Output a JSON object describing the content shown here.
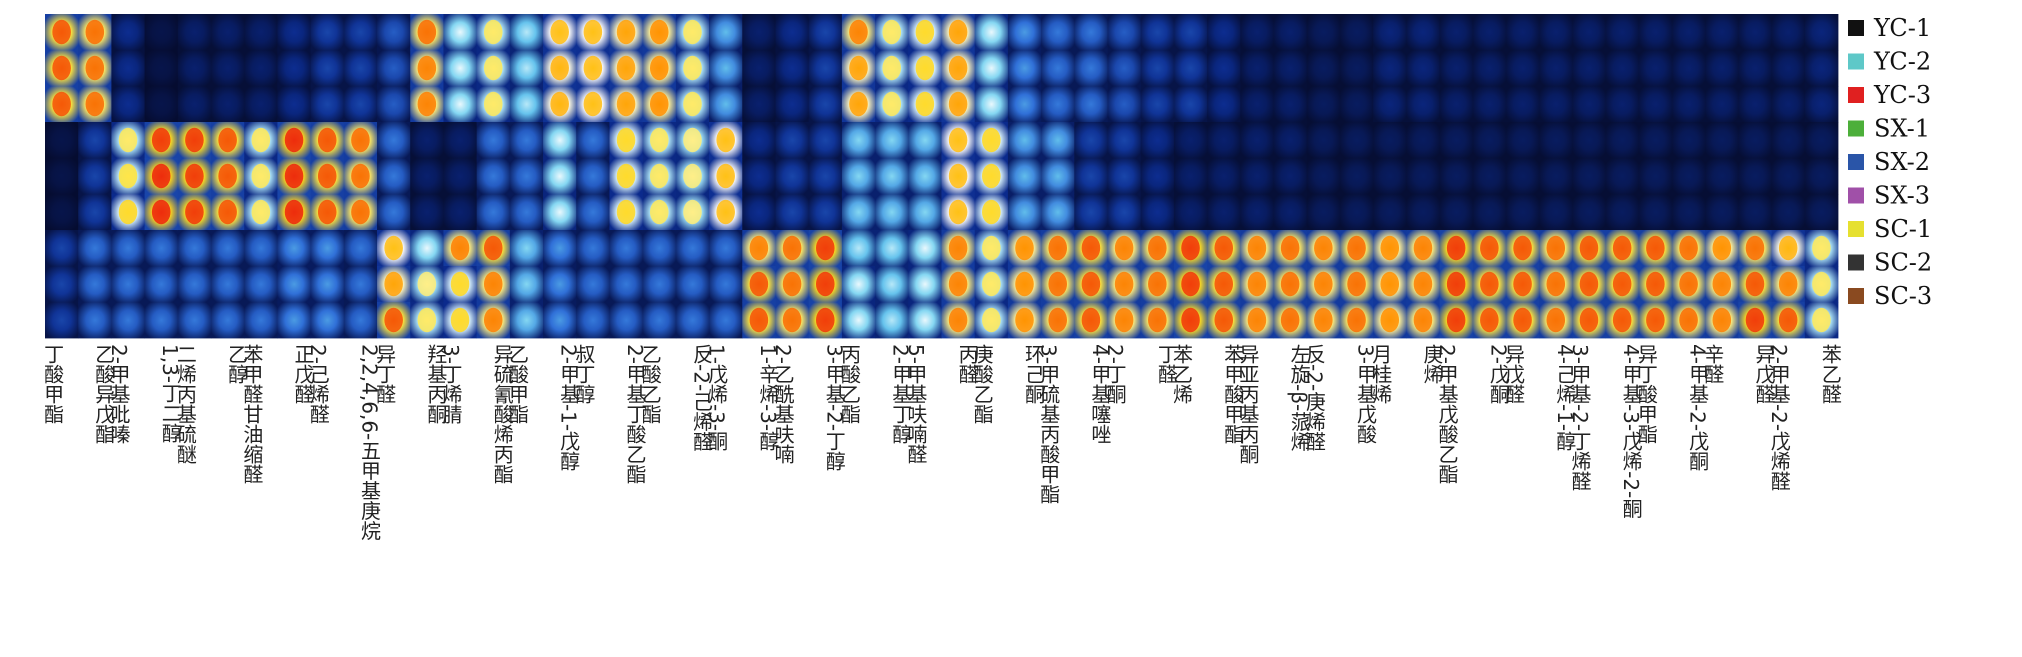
{
  "chart_data": {
    "type": "heatmap",
    "title": "",
    "xlabel": "",
    "ylabel": "",
    "legend_position": "right",
    "colormap": [
      "#050a28",
      "#0b2a8c",
      "#2f6fd8",
      "#6ed0f0",
      "#ffffff",
      "#ffe020",
      "#ff9000",
      "#e81010"
    ],
    "background_color": "#0a1640",
    "legend": [
      {
        "label": "YC-1",
        "color": "#111111"
      },
      {
        "label": "YC-2",
        "color": "#5ec8c8"
      },
      {
        "label": "YC-3",
        "color": "#e02020"
      },
      {
        "label": "SX-1",
        "color": "#4caf3a"
      },
      {
        "label": "SX-2",
        "color": "#2a55a8"
      },
      {
        "label": "SX-3",
        "color": "#a050a8"
      },
      {
        "label": "SC-1",
        "color": "#e6e030"
      },
      {
        "label": "SC-2",
        "color": "#333333"
      },
      {
        "label": "SC-3",
        "color": "#8a4a20"
      }
    ],
    "rows": [
      "YC-1",
      "YC-2",
      "YC-3",
      "SX-1",
      "SX-2",
      "SX-3",
      "SC-1",
      "SC-2",
      "SC-3"
    ],
    "columns": [
      {
        "label": "丁酸甲酯",
        "v": [
          [
            0.85,
            0.85,
            0.85
          ],
          [
            0.05,
            0.05,
            0.05
          ],
          [
            0.2,
            0.2,
            0.2
          ]
        ]
      },
      {
        "label": "乙酸异戊酯",
        "v": [
          [
            0.82,
            0.82,
            0.82
          ],
          [
            0.2,
            0.2,
            0.2
          ],
          [
            0.3,
            0.3,
            0.3
          ]
        ]
      },
      {
        "label": "2-甲基吡嗪",
        "v": [
          [
            0.15,
            0.15,
            0.15
          ],
          [
            0.6,
            0.62,
            0.65
          ],
          [
            0.3,
            0.3,
            0.3
          ]
        ]
      },
      {
        "label": "1,3-丁二醇",
        "v": [
          [
            0.05,
            0.05,
            0.05
          ],
          [
            0.88,
            0.9,
            0.9
          ],
          [
            0.3,
            0.3,
            0.3
          ]
        ]
      },
      {
        "label": "二烯丙基硫醚",
        "v": [
          [
            0.1,
            0.1,
            0.1
          ],
          [
            0.88,
            0.88,
            0.88
          ],
          [
            0.3,
            0.3,
            0.3
          ]
        ]
      },
      {
        "label": "乙醇",
        "v": [
          [
            0.1,
            0.1,
            0.1
          ],
          [
            0.85,
            0.85,
            0.85
          ],
          [
            0.3,
            0.3,
            0.3
          ]
        ]
      },
      {
        "label": "苯甲醛甘油缩醛",
        "v": [
          [
            0.1,
            0.1,
            0.1
          ],
          [
            0.6,
            0.6,
            0.6
          ],
          [
            0.3,
            0.3,
            0.3
          ]
        ]
      },
      {
        "label": "正戊醛",
        "v": [
          [
            0.15,
            0.15,
            0.15
          ],
          [
            0.9,
            0.9,
            0.9
          ],
          [
            0.35,
            0.35,
            0.35
          ]
        ]
      },
      {
        "label": "2-己烯醛",
        "v": [
          [
            0.2,
            0.2,
            0.2
          ],
          [
            0.85,
            0.85,
            0.85
          ],
          [
            0.35,
            0.35,
            0.35
          ]
        ]
      },
      {
        "label": "2,2,4,6,6-五甲基庚烷",
        "v": [
          [
            0.2,
            0.2,
            0.2
          ],
          [
            0.82,
            0.82,
            0.82
          ],
          [
            0.3,
            0.3,
            0.3
          ]
        ]
      },
      {
        "label": "异丁醛",
        "v": [
          [
            0.25,
            0.25,
            0.25
          ],
          [
            0.3,
            0.3,
            0.3
          ],
          [
            0.7,
            0.75,
            0.85
          ]
        ]
      },
      {
        "label": "羟基丙酮",
        "v": [
          [
            0.82,
            0.8,
            0.8
          ],
          [
            0.1,
            0.1,
            0.1
          ],
          [
            0.55,
            0.58,
            0.6
          ]
        ]
      },
      {
        "label": "3-丁烯腈",
        "v": [
          [
            0.55,
            0.55,
            0.55
          ],
          [
            0.1,
            0.1,
            0.1
          ],
          [
            0.8,
            0.65,
            0.65
          ]
        ]
      },
      {
        "label": "异硫氰酸烯丙酯",
        "v": [
          [
            0.6,
            0.6,
            0.6
          ],
          [
            0.3,
            0.3,
            0.3
          ],
          [
            0.85,
            0.8,
            0.8
          ]
        ]
      },
      {
        "label": "乙酸甲酯",
        "v": [
          [
            0.5,
            0.5,
            0.5
          ],
          [
            0.3,
            0.3,
            0.3
          ],
          [
            0.45,
            0.45,
            0.45
          ]
        ]
      },
      {
        "label": "2-甲基-1-戊醇",
        "v": [
          [
            0.7,
            0.72,
            0.72
          ],
          [
            0.55,
            0.55,
            0.55
          ],
          [
            0.35,
            0.35,
            0.35
          ]
        ]
      },
      {
        "label": "叔丁醇",
        "v": [
          [
            0.7,
            0.7,
            0.7
          ],
          [
            0.3,
            0.3,
            0.3
          ],
          [
            0.3,
            0.3,
            0.3
          ]
        ]
      },
      {
        "label": "2-甲基丁酸乙酯",
        "v": [
          [
            0.75,
            0.75,
            0.75
          ],
          [
            0.65,
            0.65,
            0.65
          ],
          [
            0.3,
            0.3,
            0.3
          ]
        ]
      },
      {
        "label": "乙酸乙酯",
        "v": [
          [
            0.78,
            0.78,
            0.78
          ],
          [
            0.6,
            0.6,
            0.6
          ],
          [
            0.3,
            0.3,
            0.3
          ]
        ]
      },
      {
        "label": "反-2-己烯醛",
        "v": [
          [
            0.6,
            0.6,
            0.6
          ],
          [
            0.58,
            0.58,
            0.58
          ],
          [
            0.3,
            0.3,
            0.3
          ]
        ]
      },
      {
        "label": "1-戊烯-3-酮",
        "v": [
          [
            0.4,
            0.4,
            0.4
          ],
          [
            0.7,
            0.7,
            0.7
          ],
          [
            0.3,
            0.3,
            0.3
          ]
        ]
      },
      {
        "label": "1-辛烯-3-醇",
        "v": [
          [
            0.1,
            0.1,
            0.1
          ],
          [
            0.15,
            0.15,
            0.15
          ],
          [
            0.8,
            0.85,
            0.85
          ]
        ]
      },
      {
        "label": "2-乙酰基呋喃",
        "v": [
          [
            0.15,
            0.15,
            0.15
          ],
          [
            0.2,
            0.2,
            0.2
          ],
          [
            0.82,
            0.82,
            0.82
          ]
        ]
      },
      {
        "label": "3-甲基-2-丁醇",
        "v": [
          [
            0.2,
            0.2,
            0.2
          ],
          [
            0.2,
            0.2,
            0.2
          ],
          [
            0.88,
            0.88,
            0.88
          ]
        ]
      },
      {
        "label": "丙酸乙酯",
        "v": [
          [
            0.8,
            0.75,
            0.75
          ],
          [
            0.45,
            0.45,
            0.45
          ],
          [
            0.5,
            0.55,
            0.55
          ]
        ]
      },
      {
        "label": "2-甲基丁醇",
        "v": [
          [
            0.6,
            0.6,
            0.6
          ],
          [
            0.45,
            0.45,
            0.45
          ],
          [
            0.5,
            0.5,
            0.5
          ]
        ]
      },
      {
        "label": "5-甲基呋喃醛",
        "v": [
          [
            0.65,
            0.65,
            0.65
          ],
          [
            0.45,
            0.45,
            0.45
          ],
          [
            0.55,
            0.55,
            0.55
          ]
        ]
      },
      {
        "label": "丙醛",
        "v": [
          [
            0.75,
            0.75,
            0.75
          ],
          [
            0.7,
            0.7,
            0.7
          ],
          [
            0.8,
            0.8,
            0.8
          ]
        ]
      },
      {
        "label": "庚酸乙酯",
        "v": [
          [
            0.55,
            0.55,
            0.55
          ],
          [
            0.65,
            0.65,
            0.65
          ],
          [
            0.6,
            0.6,
            0.6
          ]
        ]
      },
      {
        "label": "环己酮",
        "v": [
          [
            0.35,
            0.35,
            0.35
          ],
          [
            0.4,
            0.4,
            0.4
          ],
          [
            0.78,
            0.78,
            0.78
          ]
        ]
      },
      {
        "label": "3-甲硫基丙酸甲酯",
        "v": [
          [
            0.3,
            0.3,
            0.3
          ],
          [
            0.4,
            0.4,
            0.4
          ],
          [
            0.82,
            0.82,
            0.82
          ]
        ]
      },
      {
        "label": "4-甲基噻唑",
        "v": [
          [
            0.3,
            0.3,
            0.3
          ],
          [
            0.2,
            0.2,
            0.2
          ],
          [
            0.85,
            0.85,
            0.85
          ]
        ]
      },
      {
        "label": "2-丁酮",
        "v": [
          [
            0.25,
            0.25,
            0.25
          ],
          [
            0.2,
            0.2,
            0.2
          ],
          [
            0.8,
            0.8,
            0.8
          ]
        ]
      },
      {
        "label": "丁醛",
        "v": [
          [
            0.2,
            0.2,
            0.2
          ],
          [
            0.15,
            0.15,
            0.15
          ],
          [
            0.82,
            0.82,
            0.82
          ]
        ]
      },
      {
        "label": "苯乙烯",
        "v": [
          [
            0.2,
            0.2,
            0.2
          ],
          [
            0.1,
            0.1,
            0.1
          ],
          [
            0.88,
            0.88,
            0.88
          ]
        ]
      },
      {
        "label": "苯甲酸甲酯",
        "v": [
          [
            0.15,
            0.15,
            0.15
          ],
          [
            0.1,
            0.1,
            0.1
          ],
          [
            0.85,
            0.85,
            0.85
          ]
        ]
      },
      {
        "label": "异亚丙基丙酮",
        "v": [
          [
            0.1,
            0.1,
            0.1
          ],
          [
            0.1,
            0.1,
            0.1
          ],
          [
            0.8,
            0.8,
            0.8
          ]
        ]
      },
      {
        "label": "左旋-β-蒎烯",
        "v": [
          [
            0.1,
            0.1,
            0.1
          ],
          [
            0.1,
            0.1,
            0.1
          ],
          [
            0.82,
            0.82,
            0.82
          ]
        ]
      },
      {
        "label": "反-2-庚烯醛",
        "v": [
          [
            0.08,
            0.08,
            0.08
          ],
          [
            0.08,
            0.08,
            0.08
          ],
          [
            0.8,
            0.8,
            0.8
          ]
        ]
      },
      {
        "label": "3-甲基戊酸",
        "v": [
          [
            0.08,
            0.08,
            0.08
          ],
          [
            0.08,
            0.08,
            0.08
          ],
          [
            0.82,
            0.82,
            0.82
          ]
        ]
      },
      {
        "label": "月桂烯",
        "v": [
          [
            0.12,
            0.12,
            0.12
          ],
          [
            0.08,
            0.08,
            0.08
          ],
          [
            0.78,
            0.78,
            0.78
          ]
        ]
      },
      {
        "label": "庚烯",
        "v": [
          [
            0.12,
            0.12,
            0.12
          ],
          [
            0.08,
            0.08,
            0.08
          ],
          [
            0.8,
            0.8,
            0.8
          ]
        ]
      },
      {
        "label": "2-甲基戊酸乙酯",
        "v": [
          [
            0.1,
            0.1,
            0.1
          ],
          [
            0.08,
            0.08,
            0.08
          ],
          [
            0.88,
            0.88,
            0.88
          ]
        ]
      },
      {
        "label": "2-戊酮",
        "v": [
          [
            0.1,
            0.1,
            0.1
          ],
          [
            0.08,
            0.08,
            0.08
          ],
          [
            0.85,
            0.85,
            0.85
          ]
        ]
      },
      {
        "label": "异戊醛",
        "v": [
          [
            0.1,
            0.1,
            0.1
          ],
          [
            0.08,
            0.08,
            0.08
          ],
          [
            0.85,
            0.85,
            0.85
          ]
        ]
      },
      {
        "label": "4-己烯-1-醇",
        "v": [
          [
            0.1,
            0.1,
            0.1
          ],
          [
            0.08,
            0.08,
            0.08
          ],
          [
            0.82,
            0.82,
            0.82
          ]
        ]
      },
      {
        "label": "3-甲基-2-丁烯醛",
        "v": [
          [
            0.1,
            0.1,
            0.1
          ],
          [
            0.08,
            0.08,
            0.08
          ],
          [
            0.85,
            0.85,
            0.85
          ]
        ]
      },
      {
        "label": "4-甲基-3-戊烯-2-酮",
        "v": [
          [
            0.1,
            0.1,
            0.1
          ],
          [
            0.08,
            0.08,
            0.08
          ],
          [
            0.85,
            0.85,
            0.85
          ]
        ]
      },
      {
        "label": "异丁酸甲酯",
        "v": [
          [
            0.1,
            0.1,
            0.1
          ],
          [
            0.08,
            0.08,
            0.08
          ],
          [
            0.85,
            0.85,
            0.85
          ]
        ]
      },
      {
        "label": "4-甲基-2-戊酮",
        "v": [
          [
            0.1,
            0.1,
            0.1
          ],
          [
            0.08,
            0.08,
            0.08
          ],
          [
            0.82,
            0.82,
            0.82
          ]
        ]
      },
      {
        "label": "辛醛",
        "v": [
          [
            0.1,
            0.1,
            0.1
          ],
          [
            0.08,
            0.08,
            0.08
          ],
          [
            0.78,
            0.8,
            0.8
          ]
        ]
      },
      {
        "label": "异戊醛",
        "v": [
          [
            0.1,
            0.1,
            0.1
          ],
          [
            0.08,
            0.08,
            0.08
          ],
          [
            0.82,
            0.85,
            0.88
          ]
        ]
      },
      {
        "label": "2-甲基-2-戊烯醛",
        "v": [
          [
            0.1,
            0.1,
            0.1
          ],
          [
            0.08,
            0.08,
            0.08
          ],
          [
            0.72,
            0.8,
            0.85
          ]
        ]
      },
      {
        "label": "苯乙醛",
        "v": [
          [
            0.12,
            0.12,
            0.12
          ],
          [
            0.08,
            0.08,
            0.08
          ],
          [
            0.6,
            0.6,
            0.6
          ]
        ]
      }
    ]
  }
}
